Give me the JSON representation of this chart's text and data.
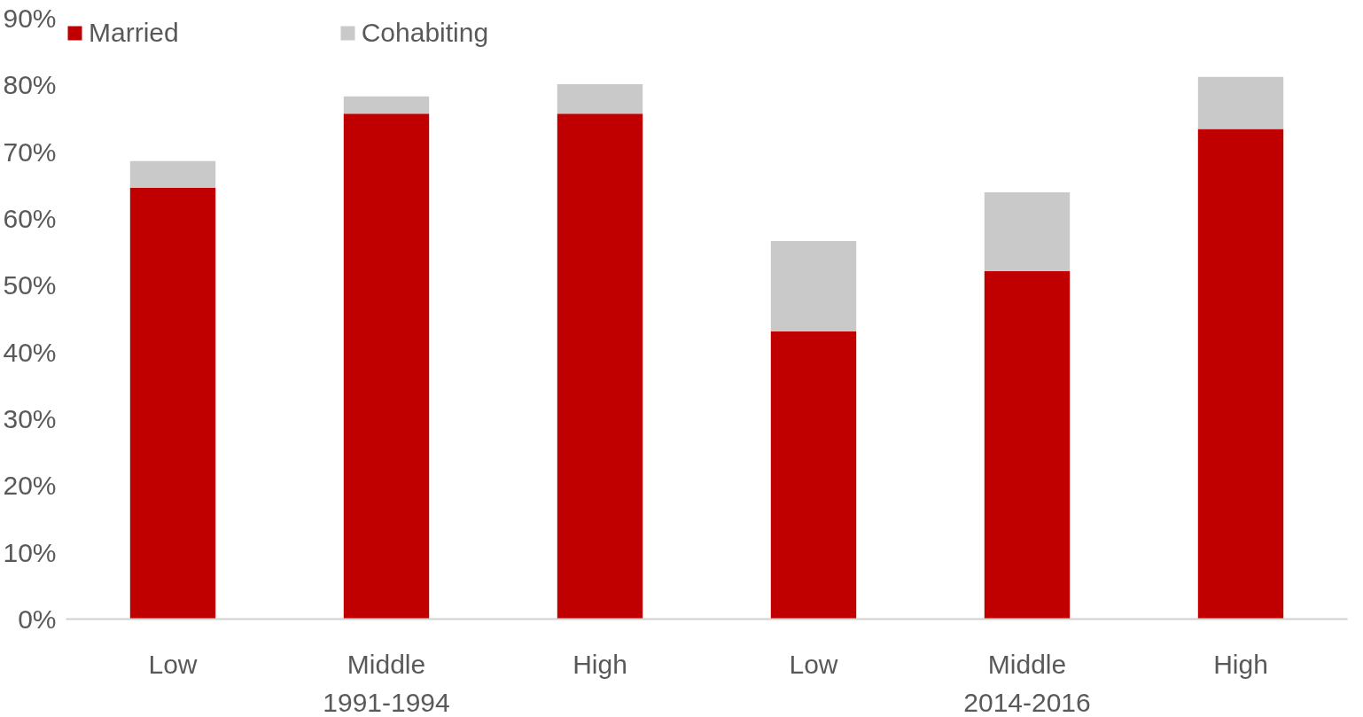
{
  "chart_data": {
    "type": "bar",
    "stacked": true,
    "categories": [
      "Low",
      "Middle",
      "High",
      "Low",
      "Middle",
      "High"
    ],
    "series": [
      {
        "name": "Married",
        "color": "#c00000",
        "values": [
          64.6,
          75.7,
          75.7,
          43.1,
          52.1,
          73.4
        ]
      },
      {
        "name": "Cohabiting",
        "color": "#c9c9c9",
        "values": [
          4.0,
          2.6,
          4.4,
          13.5,
          11.8,
          7.8
        ]
      }
    ],
    "ylim": [
      0,
      90
    ],
    "yticks": [
      {
        "value": 0,
        "label": "0%"
      },
      {
        "value": 10,
        "label": "10%"
      },
      {
        "value": 20,
        "label": "20%"
      },
      {
        "value": 30,
        "label": "30%"
      },
      {
        "value": 40,
        "label": "40%"
      },
      {
        "value": 50,
        "label": "50%"
      },
      {
        "value": 60,
        "label": "60%"
      },
      {
        "value": 70,
        "label": "70%"
      },
      {
        "value": 80,
        "label": "80%"
      },
      {
        "value": 90,
        "label": "90%"
      }
    ],
    "annotations": [
      "1991-1994",
      "2014-2016"
    ],
    "grid": false,
    "legend": "top"
  }
}
